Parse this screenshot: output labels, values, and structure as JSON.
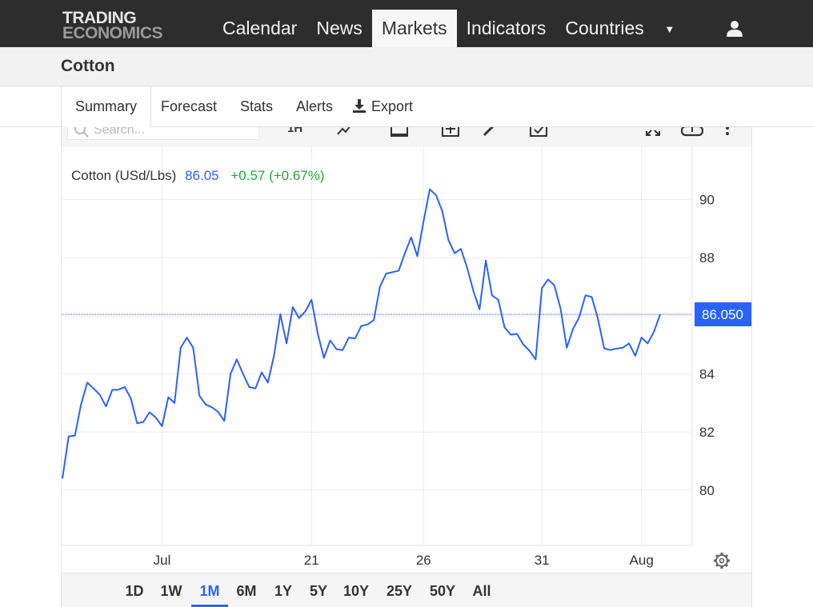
{
  "brand": {
    "line1": "TRADING",
    "line2": "ECONOMICS"
  },
  "nav": {
    "items": [
      {
        "label": "Calendar"
      },
      {
        "label": "News"
      },
      {
        "label": "Markets",
        "active": true
      },
      {
        "label": "Indicators"
      },
      {
        "label": "Countries"
      }
    ],
    "more_icon": "caret-down-icon",
    "user_icon": "user-icon"
  },
  "page": {
    "title": "Cotton"
  },
  "tabs": [
    {
      "label": "Summary",
      "active": true
    },
    {
      "label": "Forecast"
    },
    {
      "label": "Stats"
    },
    {
      "label": "Alerts"
    },
    {
      "label": "Export",
      "icon": "download-icon"
    }
  ],
  "toolbar": {
    "search_placeholder": "Search...",
    "interval_label": "1H",
    "icons": [
      "indicator-icon",
      "calendar-icon",
      "add-compare-icon",
      "draw-pencil-icon",
      "checkbox-icon",
      "fullscreen-icon",
      "download-cloud-icon",
      "more-vertical-icon"
    ]
  },
  "quote": {
    "name": "Cotton (USd/Lbs)",
    "price": "86.05",
    "change": "+0.57 (+0.67%)",
    "last_label": "86.050"
  },
  "colors": {
    "line": "#2962ff",
    "up": "#22ab2a",
    "grid": "#ececec"
  },
  "ranges": [
    {
      "label": "1D"
    },
    {
      "label": "1W"
    },
    {
      "label": "1M",
      "active": true
    },
    {
      "label": "6M"
    },
    {
      "label": "1Y"
    },
    {
      "label": "5Y"
    },
    {
      "label": "10Y"
    },
    {
      "label": "25Y"
    },
    {
      "label": "50Y"
    },
    {
      "label": "All"
    }
  ],
  "settings_icon": "gear-icon",
  "chart_data": {
    "type": "line",
    "title": "",
    "xlabel": "",
    "ylabel": "",
    "x_ticks": [
      "Jul",
      "21",
      "26",
      "31",
      "Aug"
    ],
    "y_ticks": [
      80,
      82,
      84,
      86,
      88,
      90
    ],
    "ylim": [
      78.1,
      91.8
    ],
    "grid": true,
    "last_value": 86.05,
    "series": [
      {
        "values": [
          80.4,
          81.85,
          81.88,
          82.95,
          83.7,
          83.5,
          83.28,
          82.88,
          83.45,
          83.46,
          83.55,
          83.15,
          82.3,
          82.35,
          82.68,
          82.5,
          82.2,
          83.2,
          83.0,
          84.9,
          85.25,
          84.9,
          83.25,
          82.95,
          82.85,
          82.7,
          82.38,
          84.0,
          84.5,
          84.0,
          83.55,
          83.5,
          84.05,
          83.7,
          84.65,
          86.05,
          85.05,
          86.3,
          85.92,
          86.15,
          86.55,
          85.4,
          84.55,
          85.15,
          84.85,
          84.82,
          85.25,
          85.22,
          85.65,
          85.7,
          85.85,
          87.0,
          87.45,
          87.5,
          87.55,
          88.15,
          88.7,
          88.05,
          89.25,
          90.35,
          90.15,
          89.6,
          88.6,
          88.15,
          88.3,
          87.65,
          86.85,
          86.22,
          87.9,
          86.7,
          86.55,
          85.6,
          85.35,
          85.38,
          85.02,
          84.8,
          84.5,
          86.95,
          87.25,
          87.05,
          86.25,
          84.9,
          85.55,
          85.95,
          86.7,
          86.65,
          85.9,
          84.88,
          84.82,
          84.87,
          84.9,
          85.05,
          84.62,
          85.25,
          85.05,
          85.45,
          86.05
        ]
      }
    ]
  }
}
